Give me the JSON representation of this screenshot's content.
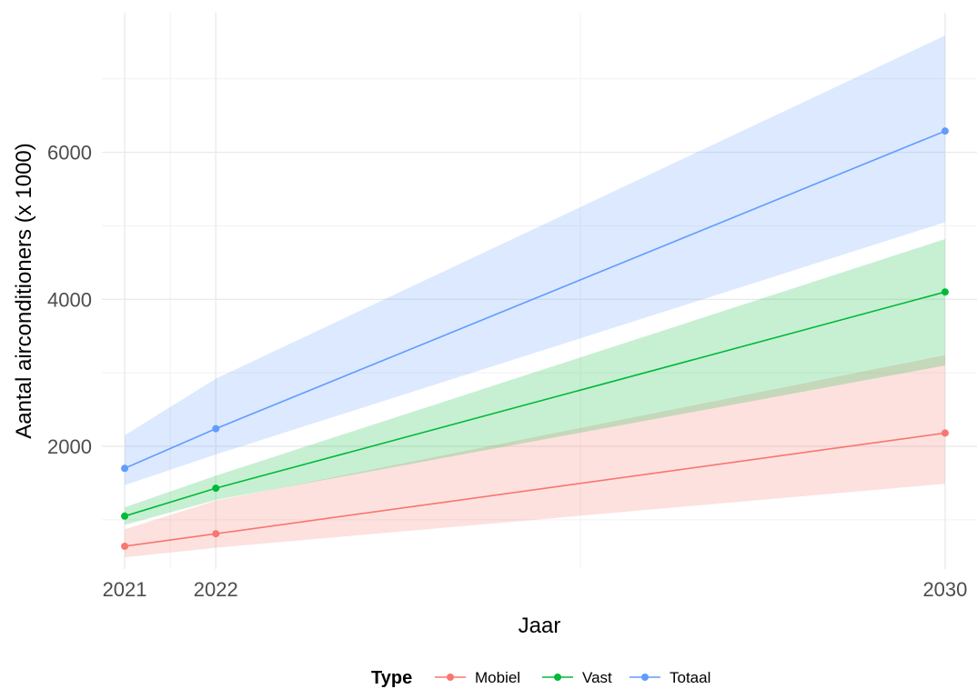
{
  "chart_data": {
    "type": "line",
    "x": [
      2021,
      2022,
      2030
    ],
    "x_ticks": [
      "2021",
      "2022",
      "2030"
    ],
    "y_ticks": [
      "2000",
      "4000",
      "6000"
    ],
    "xlabel": "Jaar",
    "ylabel": "Aantal airconditioners (x 1000)",
    "xlim": [
      2020.75,
      2030.35
    ],
    "ylim": [
      330,
      7900
    ],
    "grid": true,
    "legend": {
      "title": "Type",
      "position": "bottom"
    },
    "series": [
      {
        "name": "Mobiel",
        "color": "#F8766D",
        "values": [
          640,
          810,
          2180
        ],
        "lower": [
          490,
          620,
          1490
        ],
        "upper": [
          870,
          1260,
          3240
        ]
      },
      {
        "name": "Vast",
        "color": "#00BA38",
        "values": [
          1050,
          1430,
          4100
        ],
        "lower": [
          930,
          1270,
          3100
        ],
        "upper": [
          1170,
          1600,
          4820
        ]
      },
      {
        "name": "Totaal",
        "color": "#619CFF",
        "values": [
          1700,
          2240,
          6290
        ],
        "lower": [
          1470,
          1890,
          5050
        ],
        "upper": [
          2150,
          2920,
          7590
        ]
      }
    ]
  }
}
